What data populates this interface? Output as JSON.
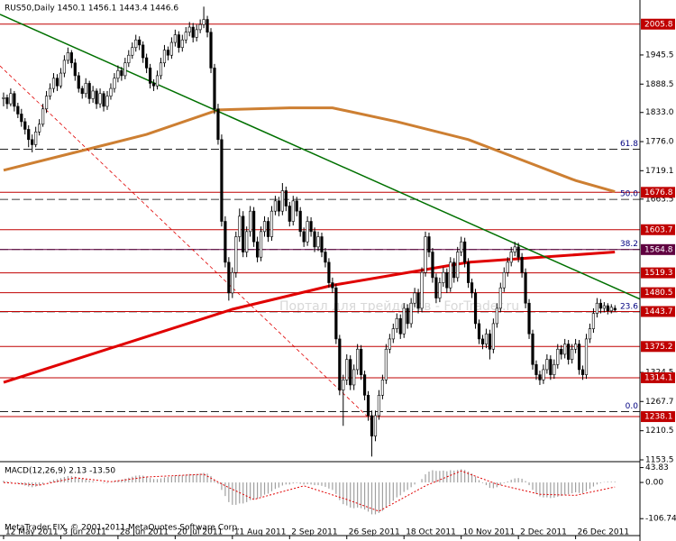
{
  "chart_data": {
    "type": "candlestick",
    "title": "RUS50,Daily  1450.1 1456.1 1443.4 1446.6",
    "footer": "MetaTrader FIX, © 2001-2011 MetaQuotes Software Corp.",
    "watermark": "Портал для трейдеров - ForTrader.ru",
    "xlim": [
      -1,
      178
    ],
    "ylim": [
      1150,
      2053
    ],
    "xticks": [
      {
        "value": 0,
        "label": "12 May 2011"
      },
      {
        "value": 16,
        "label": "3 Jun 2011"
      },
      {
        "value": 32,
        "label": "28 Jun 2011"
      },
      {
        "value": 48,
        "label": "20 Jul 2011"
      },
      {
        "value": 64,
        "label": "11 Aug 2011"
      },
      {
        "value": 80,
        "label": "2 Sep 2011"
      },
      {
        "value": 96,
        "label": "26 Sep 2011"
      },
      {
        "value": 112,
        "label": "18 Oct 2011"
      },
      {
        "value": 128,
        "label": "10 Nov 2011"
      },
      {
        "value": 144,
        "label": "2 Dec 2011"
      },
      {
        "value": 160,
        "label": "26 Dec 2011"
      }
    ],
    "yticks": [
      1945.5,
      1888.5,
      {
        "value": 1833,
        "label": "1833.0"
      },
      {
        "value": 1776,
        "label": "1776.0"
      },
      1719.1,
      1663.5,
      1324.5,
      1267.7,
      1210.5,
      1153.5
    ],
    "ohlc": {
      "open": [
        1860,
        1862,
        1850,
        1870,
        1845,
        1830,
        1815,
        1800,
        1780,
        1770,
        1795,
        1810,
        1840,
        1865,
        1880,
        1900,
        1885,
        1910,
        1935,
        1950,
        1930,
        1905,
        1880,
        1870,
        1890,
        1860,
        1875,
        1850,
        1870,
        1845,
        1865,
        1880,
        1900,
        1915,
        1905,
        1930,
        1945,
        1960,
        1975,
        1965,
        1940,
        1920,
        1890,
        1885,
        1905,
        1930,
        1955,
        1945,
        1970,
        1985,
        1960,
        1975,
        1990,
        2000,
        1980,
        1995,
        2005,
        2015,
        1990,
        1920,
        1840,
        1780,
        1620,
        1540,
        1480,
        1520,
        1590,
        1630,
        1560,
        1600,
        1640,
        1580,
        1550,
        1600,
        1620,
        1590,
        1640,
        1660,
        1640,
        1680,
        1650,
        1620,
        1660,
        1640,
        1600,
        1580,
        1620,
        1600,
        1570,
        1590,
        1560,
        1540,
        1500,
        1490,
        1390,
        1290,
        1310,
        1350,
        1300,
        1330,
        1370,
        1320,
        1280,
        1240,
        1200,
        1240,
        1280,
        1310,
        1370,
        1390,
        1410,
        1430,
        1400,
        1450,
        1420,
        1460,
        1480,
        1450,
        1520,
        1590,
        1560,
        1510,
        1470,
        1500,
        1520,
        1490,
        1540,
        1510,
        1560,
        1580,
        1540,
        1500,
        1480,
        1420,
        1390,
        1380,
        1400,
        1370,
        1420,
        1450,
        1490,
        1520,
        1540,
        1560,
        1570,
        1550,
        1520,
        1460,
        1400,
        1340,
        1320,
        1310,
        1330,
        1350,
        1320,
        1340,
        1370,
        1360,
        1380,
        1350,
        1370,
        1380,
        1330,
        1320,
        1390,
        1410,
        1440,
        1460,
        1450,
        1455,
        1445,
        1450.1
      ],
      "high": [
        1872,
        1868,
        1880,
        1875,
        1852,
        1840,
        1822,
        1808,
        1790,
        1805,
        1820,
        1850,
        1875,
        1890,
        1910,
        1908,
        1920,
        1945,
        1960,
        1955,
        1938,
        1912,
        1885,
        1900,
        1895,
        1885,
        1880,
        1880,
        1875,
        1875,
        1890,
        1910,
        1925,
        1922,
        1940,
        1955,
        1970,
        1985,
        1982,
        1972,
        1948,
        1928,
        1898,
        1915,
        1940,
        1965,
        1962,
        1980,
        1995,
        1992,
        1985,
        2000,
        2010,
        2008,
        2005,
        2015,
        2040,
        2022,
        1998,
        1928,
        1850,
        1790,
        1630,
        1550,
        1530,
        1600,
        1645,
        1640,
        1610,
        1650,
        1648,
        1590,
        1610,
        1630,
        1628,
        1650,
        1670,
        1668,
        1695,
        1688,
        1658,
        1670,
        1668,
        1648,
        1608,
        1630,
        1628,
        1608,
        1600,
        1598,
        1568,
        1548,
        1510,
        1498,
        1398,
        1320,
        1360,
        1358,
        1340,
        1380,
        1378,
        1328,
        1288,
        1250,
        1250,
        1290,
        1320,
        1380,
        1400,
        1420,
        1440,
        1438,
        1460,
        1458,
        1470,
        1490,
        1488,
        1530,
        1600,
        1598,
        1568,
        1518,
        1510,
        1530,
        1528,
        1550,
        1548,
        1570,
        1590,
        1588,
        1548,
        1508,
        1488,
        1428,
        1398,
        1410,
        1408,
        1430,
        1460,
        1500,
        1530,
        1550,
        1570,
        1580,
        1578,
        1558,
        1528,
        1468,
        1408,
        1348,
        1328,
        1340,
        1360,
        1358,
        1350,
        1380,
        1378,
        1390,
        1388,
        1380,
        1390,
        1388,
        1338,
        1400,
        1420,
        1450,
        1470,
        1468,
        1462,
        1460,
        1458,
        1456.1
      ],
      "low": [
        1845,
        1840,
        1845,
        1835,
        1822,
        1805,
        1790,
        1765,
        1755,
        1765,
        1788,
        1805,
        1832,
        1858,
        1872,
        1875,
        1880,
        1902,
        1928,
        1920,
        1895,
        1872,
        1860,
        1862,
        1850,
        1852,
        1840,
        1842,
        1835,
        1838,
        1858,
        1872,
        1892,
        1895,
        1898,
        1922,
        1938,
        1952,
        1955,
        1930,
        1910,
        1880,
        1875,
        1878,
        1898,
        1922,
        1935,
        1938,
        1962,
        1950,
        1952,
        1968,
        1982,
        1970,
        1972,
        1988,
        1998,
        1980,
        1910,
        1830,
        1770,
        1610,
        1530,
        1465,
        1470,
        1510,
        1580,
        1550,
        1550,
        1590,
        1570,
        1540,
        1542,
        1590,
        1580,
        1582,
        1632,
        1630,
        1632,
        1640,
        1610,
        1612,
        1630,
        1590,
        1570,
        1572,
        1590,
        1560,
        1562,
        1550,
        1530,
        1490,
        1480,
        1380,
        1280,
        1220,
        1300,
        1290,
        1290,
        1320,
        1310,
        1270,
        1230,
        1160,
        1190,
        1232,
        1272,
        1302,
        1362,
        1382,
        1402,
        1390,
        1392,
        1410,
        1412,
        1452,
        1440,
        1442,
        1512,
        1550,
        1500,
        1460,
        1462,
        1492,
        1480,
        1482,
        1500,
        1502,
        1552,
        1530,
        1490,
        1470,
        1410,
        1380,
        1370,
        1372,
        1350,
        1362,
        1412,
        1442,
        1482,
        1512,
        1532,
        1552,
        1540,
        1510,
        1450,
        1390,
        1330,
        1310,
        1300,
        1302,
        1322,
        1310,
        1312,
        1332,
        1350,
        1352,
        1340,
        1342,
        1362,
        1320,
        1310,
        1312,
        1382,
        1402,
        1432,
        1440,
        1442,
        1438,
        1440,
        1443.4
      ],
      "close": [
        1862,
        1850,
        1870,
        1845,
        1830,
        1815,
        1800,
        1780,
        1770,
        1795,
        1810,
        1840,
        1865,
        1880,
        1900,
        1885,
        1910,
        1935,
        1950,
        1930,
        1905,
        1880,
        1870,
        1890,
        1860,
        1875,
        1850,
        1870,
        1845,
        1865,
        1880,
        1900,
        1915,
        1905,
        1930,
        1945,
        1960,
        1975,
        1965,
        1940,
        1920,
        1890,
        1885,
        1905,
        1930,
        1955,
        1945,
        1970,
        1985,
        1960,
        1975,
        1990,
        2000,
        1980,
        1995,
        2005,
        2015,
        1990,
        1920,
        1840,
        1780,
        1620,
        1540,
        1480,
        1520,
        1590,
        1630,
        1560,
        1600,
        1640,
        1580,
        1550,
        1600,
        1620,
        1590,
        1640,
        1660,
        1640,
        1680,
        1650,
        1620,
        1660,
        1640,
        1600,
        1580,
        1620,
        1600,
        1570,
        1590,
        1560,
        1540,
        1500,
        1490,
        1390,
        1290,
        1310,
        1350,
        1300,
        1330,
        1370,
        1320,
        1280,
        1240,
        1200,
        1240,
        1280,
        1310,
        1370,
        1390,
        1410,
        1430,
        1400,
        1450,
        1420,
        1460,
        1480,
        1450,
        1520,
        1590,
        1560,
        1510,
        1470,
        1500,
        1520,
        1490,
        1540,
        1510,
        1560,
        1580,
        1540,
        1500,
        1480,
        1420,
        1390,
        1380,
        1400,
        1370,
        1420,
        1450,
        1490,
        1520,
        1540,
        1560,
        1570,
        1550,
        1520,
        1460,
        1400,
        1340,
        1320,
        1310,
        1330,
        1350,
        1320,
        1340,
        1370,
        1360,
        1380,
        1350,
        1370,
        1380,
        1330,
        1320,
        1390,
        1410,
        1440,
        1460,
        1450,
        1455,
        1445,
        1452,
        1446.6
      ]
    },
    "overlays": [
      {
        "color": "#cd7f32",
        "width": 3,
        "x": [
          0,
          20,
          40,
          60,
          80,
          92,
          110,
          130,
          145,
          160,
          171
        ],
        "y": [
          1720,
          1755,
          1790,
          1838,
          1842,
          1842,
          1815,
          1780,
          1740,
          1700,
          1678
        ]
      },
      {
        "color": "#e00000",
        "width": 3,
        "x": [
          0,
          64,
          92,
          130,
          171
        ],
        "y": [
          1305,
          1448,
          1495,
          1540,
          1560
        ]
      },
      {
        "color": "#007000",
        "width": 1.5,
        "x": [
          -1,
          178
        ],
        "y": [
          2025,
          1468
        ]
      },
      {
        "color": "#e00000",
        "width": 0.8,
        "dash": true,
        "x": [
          -1,
          103
        ],
        "y": [
          1924,
          1230
        ]
      }
    ],
    "levels": [
      {
        "value": 2005.8,
        "color": "#c00000"
      },
      {
        "value": 1676.8,
        "color": "#c00000"
      },
      {
        "value": 1603.7,
        "color": "#c00000"
      },
      {
        "value": 1564.8,
        "color": "#600040"
      },
      {
        "value": 1519.3,
        "color": "#c00000"
      },
      {
        "value": 1480.5,
        "color": "#c00000"
      },
      {
        "value": 1443.7,
        "color": "#c00000"
      },
      {
        "value": 1375.2,
        "color": "#c00000"
      },
      {
        "value": 1314.1,
        "color": "#c00000"
      },
      {
        "value": 1238.1,
        "color": "#c00000"
      }
    ],
    "fib_levels": [
      {
        "level": "61.8",
        "price": 1761
      },
      {
        "level": "50.0",
        "price": 1663
      },
      {
        "level": "38.2",
        "price": 1565
      },
      {
        "level": "23.6",
        "price": 1443
      },
      {
        "level": "0.0",
        "price": 1248
      }
    ],
    "macd": {
      "label": "MACD(12,26,9) 2.13 -13.50",
      "ylim": [
        -154,
        56
      ],
      "yticks": [
        43.83,
        {
          "value": 0,
          "label": "0.00"
        },
        -106.74
      ],
      "histogram": [
        5,
        3,
        2,
        0,
        -3,
        -6,
        -9,
        -12,
        -14,
        -12,
        -9,
        -5,
        0,
        4,
        8,
        10,
        13,
        16,
        19,
        19,
        17,
        14,
        11,
        9,
        6,
        4,
        1,
        0,
        -2,
        -2,
        0,
        3,
        6,
        8,
        11,
        14,
        17,
        20,
        21,
        20,
        17,
        13,
        10,
        10,
        12,
        15,
        16,
        18,
        21,
        21,
        21,
        23,
        25,
        24,
        25,
        26,
        28,
        26,
        19,
        8,
        -4,
        -22,
        -40,
        -58,
        -66,
        -66,
        -62,
        -62,
        -58,
        -52,
        -50,
        -48,
        -42,
        -36,
        -33,
        -26,
        -19,
        -15,
        -9,
        -6,
        -6,
        -3,
        -2,
        -4,
        -6,
        -5,
        -6,
        -8,
        -8,
        -10,
        -13,
        -18,
        -22,
        -34,
        -52,
        -64,
        -68,
        -74,
        -76,
        -74,
        -76,
        -80,
        -86,
        -94,
        -94,
        -90,
        -84,
        -74,
        -64,
        -54,
        -44,
        -38,
        -28,
        -22,
        -14,
        -6,
        0,
        10,
        24,
        32,
        36,
        34,
        34,
        35,
        33,
        36,
        35,
        37,
        39,
        37,
        32,
        26,
        17,
        7,
        -2,
        -8,
        -16,
        -17,
        -14,
        -8,
        -2,
        3,
        8,
        12,
        13,
        11,
        4,
        -8,
        -22,
        -33,
        -41,
        -44,
        -44,
        -46,
        -45,
        -42,
        -40,
        -36,
        -35,
        -32,
        -29,
        -31,
        -32,
        -26,
        -19,
        -12,
        -6,
        -2,
        1,
        2,
        2,
        2.13
      ],
      "signal": {
        "color": "#e00000",
        "x": [
          0,
          10,
          20,
          30,
          40,
          56,
          62,
          70,
          84,
          96,
          105,
          118,
          128,
          138,
          150,
          160,
          171
        ],
        "y": [
          0,
          -8,
          14,
          2,
          16,
          24,
          -10,
          -50,
          -10,
          -50,
          -85,
          -10,
          34,
          -5,
          -35,
          -38,
          -13.5
        ]
      }
    }
  }
}
